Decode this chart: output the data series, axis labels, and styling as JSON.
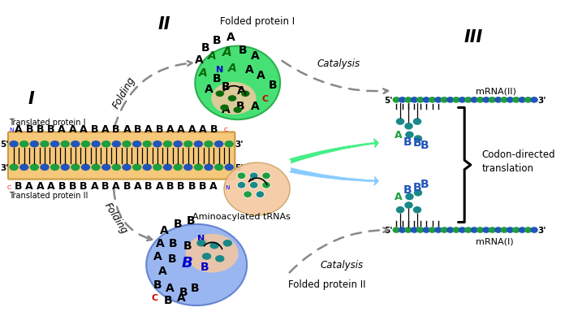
{
  "background_color": "#ffffff",
  "gene_bg_color": "#f5c87a",
  "green_color": "#1e9e3e",
  "blue_color": "#2255bb",
  "teal_color": "#1a8888",
  "dark_green": "#0a6a0a",
  "green_blob_color": "#22cc55",
  "blue_blob_color": "#88bbee",
  "peach_color": "#f5c8a0",
  "protein1_seq": "ABBBAAABABABABAAAAB",
  "protein2_seq": "BAAABBBABABABABBBBA",
  "label_protein1": "Translated protein I",
  "label_protein2": "Translated protein II",
  "label_folded1": "Folded protein I",
  "label_folded2": "Folded protein II",
  "label_folding": "Folding",
  "label_catalysis": "Catalysis",
  "label_aminoacylated": "Aminoacylated tRNAs",
  "label_codon1": "Codon-directed",
  "label_codon2": "translation",
  "label_mrna_I": "mRNA(I)",
  "label_mrna_II": "mRNA(II)",
  "roman_I": "I",
  "roman_II": "II",
  "roman_III": "III"
}
